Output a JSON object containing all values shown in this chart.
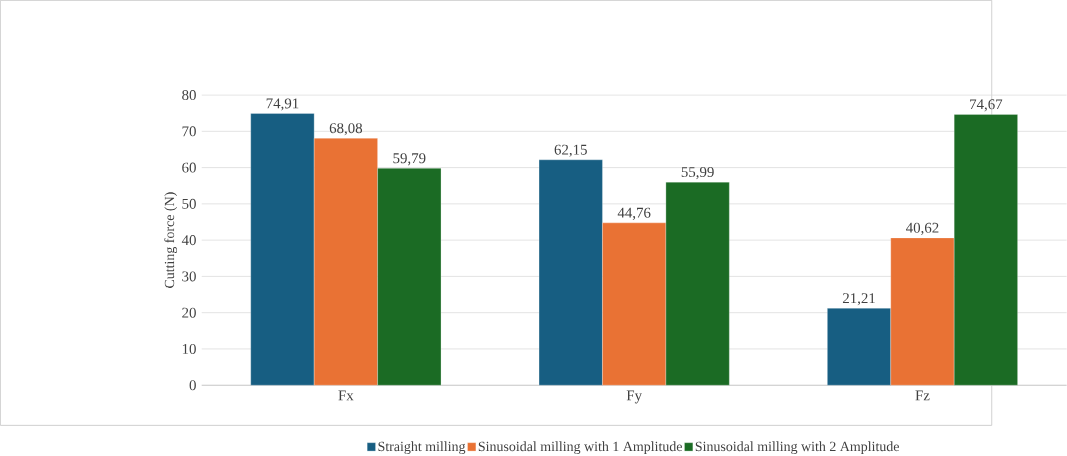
{
  "chart_data": {
    "type": "bar",
    "ylabel": "Cutting force (N)",
    "categories": [
      "Fx",
      "Fy",
      "Fz"
    ],
    "series": [
      {
        "name": "Straight milling",
        "color": "#175e82",
        "values": [
          74.91,
          62.15,
          21.21
        ],
        "value_labels": [
          "74,91",
          "62,15",
          "21,21"
        ]
      },
      {
        "name": "Sinusoidal milling with 1 Amplitude",
        "color": "#e97234",
        "values": [
          68.08,
          44.76,
          40.62
        ],
        "value_labels": [
          "68,08",
          "44,76",
          "40,62"
        ]
      },
      {
        "name": "Sinusoidal milling with 2 Amplitude",
        "color": "#1b6b24",
        "values": [
          59.79,
          55.99,
          74.67
        ],
        "value_labels": [
          "59,79",
          "55,99",
          "74,67"
        ]
      }
    ],
    "ylim": [
      0,
      80
    ],
    "yticks": [
      0,
      10,
      20,
      30,
      40,
      50,
      60,
      70,
      80
    ],
    "grid": "y",
    "legend": "bottom"
  }
}
